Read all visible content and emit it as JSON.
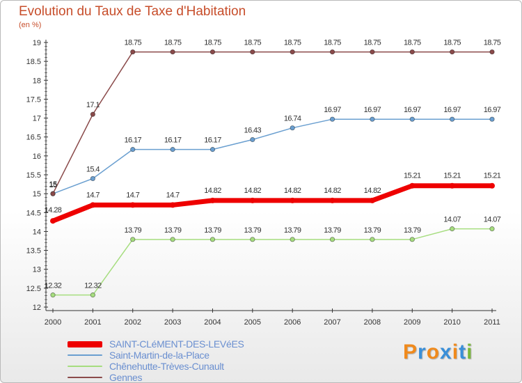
{
  "header": {
    "title": "Evolution du Taux de Taxe d'Habitation",
    "subtitle": "(en %)"
  },
  "logo": {
    "text": "Proxiti",
    "colors": [
      "#f08a1c",
      "#3a8fd8",
      "#f08a1c",
      "#3a8fd8",
      "#f08a1c",
      "#3a8fd8",
      "#7ab83a"
    ]
  },
  "chart_data": {
    "type": "line",
    "title": "Evolution du Taux de Taxe d'Habitation",
    "ylabel": "(en %)",
    "xlabel": "",
    "x": [
      "2000",
      "2001",
      "2002",
      "2003",
      "2004",
      "2005",
      "2006",
      "2007",
      "2008",
      "2009",
      "2010",
      "2011"
    ],
    "ylim": [
      12,
      19
    ],
    "yticks": [
      "12",
      "12.5",
      "13",
      "13.5",
      "14",
      "14.5",
      "15",
      "15.5",
      "16",
      "16.5",
      "17",
      "17.5",
      "18",
      "18.5",
      "19"
    ],
    "grid": false,
    "legend_position": "bottom-left",
    "series": [
      {
        "name": "SAINT-CLéMENT-DES-LEVéES",
        "color": "#ee0000",
        "values": [
          14.28,
          14.7,
          14.7,
          14.7,
          14.82,
          14.82,
          14.82,
          14.82,
          14.82,
          15.21,
          15.21,
          15.21
        ],
        "labels": [
          "14.28",
          "14.7",
          "14.7",
          "14.7",
          "14.82",
          "14.82",
          "14.82",
          "14.82",
          "14.82",
          "15.21",
          "15.21",
          "15.21"
        ]
      },
      {
        "name": "Saint-Martin-de-la-Place",
        "color": "#6a9fd0",
        "values": [
          15,
          15.4,
          16.17,
          16.17,
          16.17,
          16.43,
          16.74,
          16.97,
          16.97,
          16.97,
          16.97,
          16.97
        ],
        "labels": [
          "15",
          "15.4",
          "16.17",
          "16.17",
          "16.17",
          "16.43",
          "16.74",
          "16.97",
          "16.97",
          "16.97",
          "16.97",
          "16.97"
        ]
      },
      {
        "name": "Chênehutte-Trèves-Cunault",
        "color": "#a6dd7f",
        "values": [
          12.32,
          12.32,
          13.79,
          13.79,
          13.79,
          13.79,
          13.79,
          13.79,
          13.79,
          13.79,
          14.07,
          14.07
        ],
        "labels": [
          "12.32",
          "12.32",
          "13.79",
          "13.79",
          "13.79",
          "13.79",
          "13.79",
          "13.79",
          "13.79",
          "13.79",
          "14.07",
          "14.07"
        ]
      },
      {
        "name": "Gennes",
        "color": "#8a4a4a",
        "values": [
          15,
          17.1,
          18.75,
          18.75,
          18.75,
          18.75,
          18.75,
          18.75,
          18.75,
          18.75,
          18.75,
          18.75
        ],
        "labels": [
          "15",
          "17.1",
          "18.75",
          "18.75",
          "18.75",
          "18.75",
          "18.75",
          "18.75",
          "18.75",
          "18.75",
          "18.75",
          "18.75"
        ]
      }
    ]
  }
}
